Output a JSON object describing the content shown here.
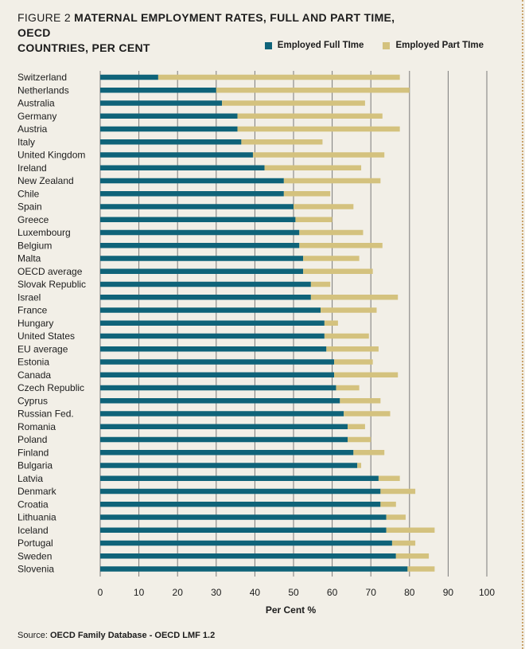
{
  "figure_label": "FIGURE 2",
  "figure_title_line1": "MATERNAL EMPLOYMENT RATES, FULL AND PART TIME, OECD",
  "figure_title_line2": "COUNTRIES, PER CENT",
  "source_label": "Source:",
  "source_text": "OECD Family Database - OECD LMF 1.2",
  "colors": {
    "full_time": "#0f6379",
    "part_time": "#d4c27e",
    "grid": "#7a7a7a",
    "background": "#f2efe7"
  },
  "chart_data": {
    "type": "bar",
    "orientation": "horizontal",
    "stacked": true,
    "xlabel": "Per Cent %",
    "xlim": [
      0,
      100
    ],
    "xticks": [
      0,
      10,
      20,
      30,
      40,
      50,
      60,
      70,
      80,
      90,
      100
    ],
    "legend_position": "top-right",
    "categories": [
      "Switzerland",
      "Netherlands",
      "Australia",
      "Germany",
      "Austria",
      "Italy",
      "United Kingdom",
      "Ireland",
      "New Zealand",
      "Chile",
      "Spain",
      "Greece",
      "Luxembourg",
      "Belgium",
      "Malta",
      "OECD average",
      "Slovak Republic",
      "Israel",
      "France",
      "Hungary",
      "United States",
      "EU average",
      "Estonia",
      "Canada",
      "Czech Republic",
      "Cyprus",
      "Russian Fed.",
      "Romania",
      "Poland",
      "Finland",
      "Bulgaria",
      "Latvia",
      "Denmark",
      "Croatia",
      "Lithuania",
      "Iceland",
      "Portugal",
      "Sweden",
      "Slovenia"
    ],
    "series": [
      {
        "name": "Employed Full TIme",
        "values": [
          15,
          30,
          31.5,
          35.5,
          35.5,
          36.5,
          39.5,
          42.5,
          47.5,
          47.5,
          50,
          50.5,
          51.5,
          51.5,
          52.5,
          52.5,
          54.5,
          54.5,
          57,
          58,
          58,
          58.5,
          60.5,
          60.5,
          61,
          62,
          63,
          64,
          64,
          65.5,
          66.5,
          72,
          72.5,
          72.5,
          74,
          74,
          75.5,
          76.5,
          79.5
        ]
      },
      {
        "name": "Employed Part TIme",
        "values": [
          62.5,
          50,
          37,
          37.5,
          42,
          21,
          34,
          25,
          25,
          12,
          15.5,
          9.5,
          16.5,
          21.5,
          14.5,
          18,
          5,
          22.5,
          14.5,
          3.5,
          11.5,
          13.5,
          10,
          16.5,
          6,
          10.5,
          12,
          4.5,
          6,
          8,
          1,
          5.5,
          9,
          4,
          5,
          12.5,
          6,
          8.5,
          7
        ]
      }
    ]
  }
}
